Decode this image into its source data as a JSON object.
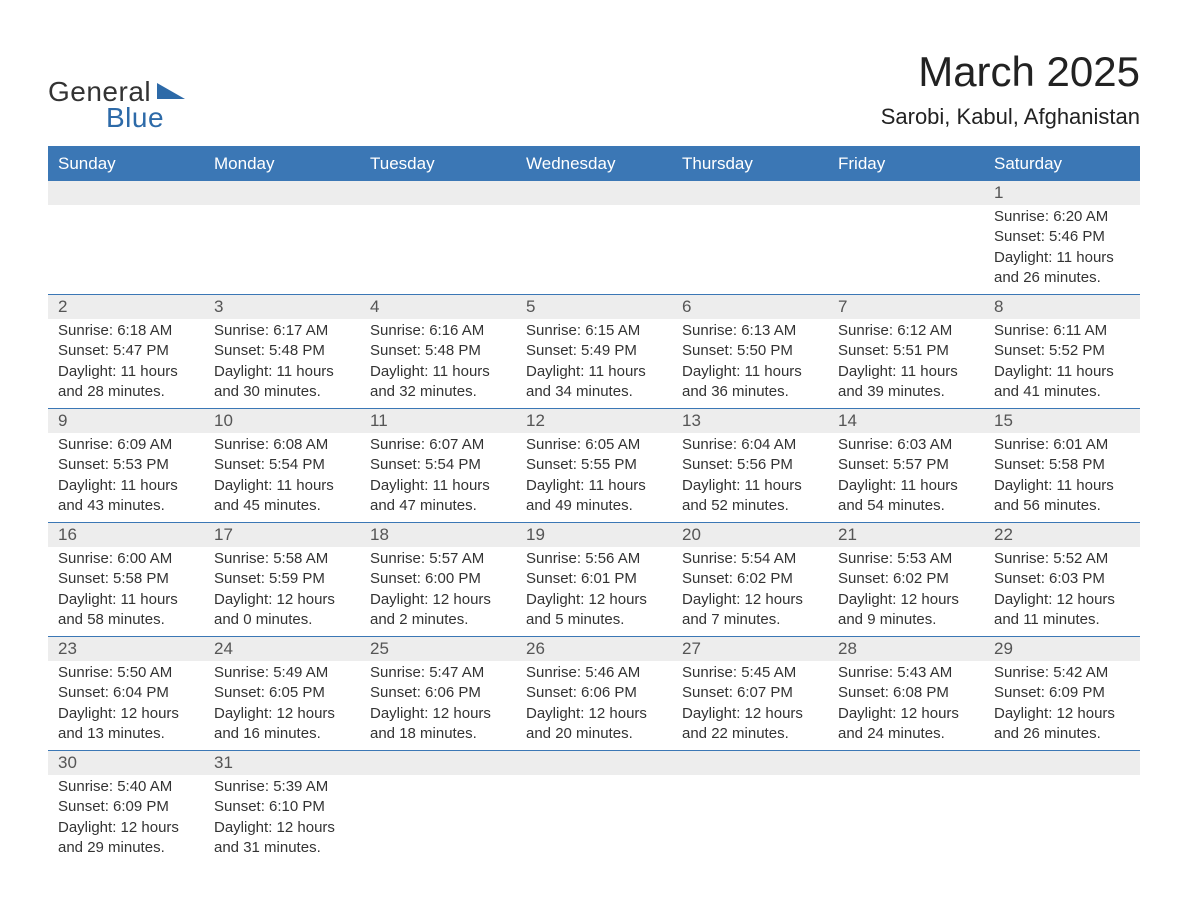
{
  "logo": {
    "text1": "General",
    "text2": "Blue",
    "shape_color": "#2d6aa8"
  },
  "title": "March 2025",
  "location": "Sarobi, Kabul, Afghanistan",
  "colors": {
    "header_bg": "#3b77b5",
    "header_fg": "#ffffff",
    "daynum_bg": "#ededed",
    "row_border": "#3b77b5",
    "text": "#333333",
    "background": "#ffffff"
  },
  "day_headers": [
    "Sunday",
    "Monday",
    "Tuesday",
    "Wednesday",
    "Thursday",
    "Friday",
    "Saturday"
  ],
  "weeks": [
    [
      null,
      null,
      null,
      null,
      null,
      null,
      {
        "n": "1",
        "sunrise": "6:20 AM",
        "sunset": "5:46 PM",
        "dl": "11 hours and 26 minutes."
      }
    ],
    [
      {
        "n": "2",
        "sunrise": "6:18 AM",
        "sunset": "5:47 PM",
        "dl": "11 hours and 28 minutes."
      },
      {
        "n": "3",
        "sunrise": "6:17 AM",
        "sunset": "5:48 PM",
        "dl": "11 hours and 30 minutes."
      },
      {
        "n": "4",
        "sunrise": "6:16 AM",
        "sunset": "5:48 PM",
        "dl": "11 hours and 32 minutes."
      },
      {
        "n": "5",
        "sunrise": "6:15 AM",
        "sunset": "5:49 PM",
        "dl": "11 hours and 34 minutes."
      },
      {
        "n": "6",
        "sunrise": "6:13 AM",
        "sunset": "5:50 PM",
        "dl": "11 hours and 36 minutes."
      },
      {
        "n": "7",
        "sunrise": "6:12 AM",
        "sunset": "5:51 PM",
        "dl": "11 hours and 39 minutes."
      },
      {
        "n": "8",
        "sunrise": "6:11 AM",
        "sunset": "5:52 PM",
        "dl": "11 hours and 41 minutes."
      }
    ],
    [
      {
        "n": "9",
        "sunrise": "6:09 AM",
        "sunset": "5:53 PM",
        "dl": "11 hours and 43 minutes."
      },
      {
        "n": "10",
        "sunrise": "6:08 AM",
        "sunset": "5:54 PM",
        "dl": "11 hours and 45 minutes."
      },
      {
        "n": "11",
        "sunrise": "6:07 AM",
        "sunset": "5:54 PM",
        "dl": "11 hours and 47 minutes."
      },
      {
        "n": "12",
        "sunrise": "6:05 AM",
        "sunset": "5:55 PM",
        "dl": "11 hours and 49 minutes."
      },
      {
        "n": "13",
        "sunrise": "6:04 AM",
        "sunset": "5:56 PM",
        "dl": "11 hours and 52 minutes."
      },
      {
        "n": "14",
        "sunrise": "6:03 AM",
        "sunset": "5:57 PM",
        "dl": "11 hours and 54 minutes."
      },
      {
        "n": "15",
        "sunrise": "6:01 AM",
        "sunset": "5:58 PM",
        "dl": "11 hours and 56 minutes."
      }
    ],
    [
      {
        "n": "16",
        "sunrise": "6:00 AM",
        "sunset": "5:58 PM",
        "dl": "11 hours and 58 minutes."
      },
      {
        "n": "17",
        "sunrise": "5:58 AM",
        "sunset": "5:59 PM",
        "dl": "12 hours and 0 minutes."
      },
      {
        "n": "18",
        "sunrise": "5:57 AM",
        "sunset": "6:00 PM",
        "dl": "12 hours and 2 minutes."
      },
      {
        "n": "19",
        "sunrise": "5:56 AM",
        "sunset": "6:01 PM",
        "dl": "12 hours and 5 minutes."
      },
      {
        "n": "20",
        "sunrise": "5:54 AM",
        "sunset": "6:02 PM",
        "dl": "12 hours and 7 minutes."
      },
      {
        "n": "21",
        "sunrise": "5:53 AM",
        "sunset": "6:02 PM",
        "dl": "12 hours and 9 minutes."
      },
      {
        "n": "22",
        "sunrise": "5:52 AM",
        "sunset": "6:03 PM",
        "dl": "12 hours and 11 minutes."
      }
    ],
    [
      {
        "n": "23",
        "sunrise": "5:50 AM",
        "sunset": "6:04 PM",
        "dl": "12 hours and 13 minutes."
      },
      {
        "n": "24",
        "sunrise": "5:49 AM",
        "sunset": "6:05 PM",
        "dl": "12 hours and 16 minutes."
      },
      {
        "n": "25",
        "sunrise": "5:47 AM",
        "sunset": "6:06 PM",
        "dl": "12 hours and 18 minutes."
      },
      {
        "n": "26",
        "sunrise": "5:46 AM",
        "sunset": "6:06 PM",
        "dl": "12 hours and 20 minutes."
      },
      {
        "n": "27",
        "sunrise": "5:45 AM",
        "sunset": "6:07 PM",
        "dl": "12 hours and 22 minutes."
      },
      {
        "n": "28",
        "sunrise": "5:43 AM",
        "sunset": "6:08 PM",
        "dl": "12 hours and 24 minutes."
      },
      {
        "n": "29",
        "sunrise": "5:42 AM",
        "sunset": "6:09 PM",
        "dl": "12 hours and 26 minutes."
      }
    ],
    [
      {
        "n": "30",
        "sunrise": "5:40 AM",
        "sunset": "6:09 PM",
        "dl": "12 hours and 29 minutes."
      },
      {
        "n": "31",
        "sunrise": "5:39 AM",
        "sunset": "6:10 PM",
        "dl": "12 hours and 31 minutes."
      },
      null,
      null,
      null,
      null,
      null
    ]
  ],
  "labels": {
    "sunrise": "Sunrise: ",
    "sunset": "Sunset: ",
    "daylight": "Daylight: "
  }
}
